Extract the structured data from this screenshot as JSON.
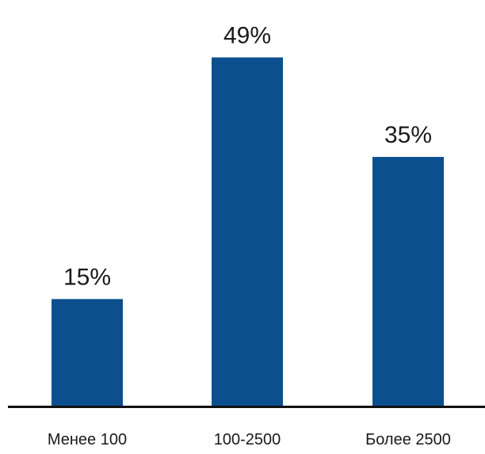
{
  "chart_data": {
    "type": "bar",
    "categories": [
      "Менее 100",
      "100-2500",
      "Более 2500"
    ],
    "values": [
      15,
      49,
      35
    ],
    "value_labels": [
      "15%",
      "49%",
      "35%"
    ],
    "unit": "%",
    "title": "",
    "xlabel": "",
    "ylabel": "",
    "ylim": [
      0,
      50
    ],
    "grid": false,
    "legend": "none",
    "colors": {
      "bar": "#0b4f8e",
      "axis": "#111111",
      "text": "#1a1a1a"
    }
  }
}
